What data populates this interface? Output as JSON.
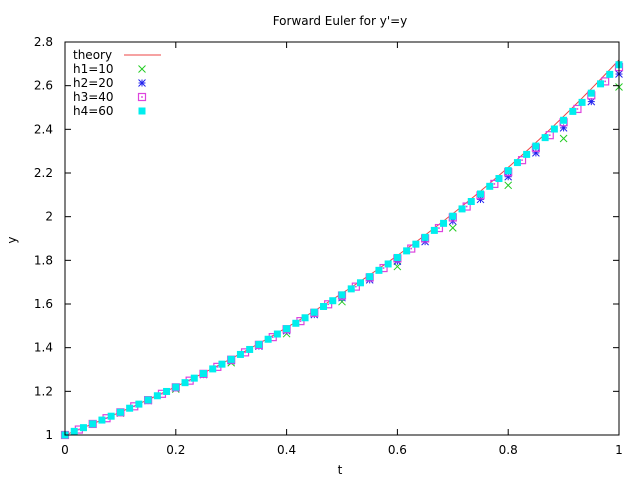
{
  "chart_data": {
    "type": "scatter",
    "title": "Forward Euler for y'=y",
    "xlabel": "t",
    "ylabel": "y",
    "xlim": [
      0,
      1
    ],
    "ylim": [
      1,
      2.8
    ],
    "x_ticks": [
      "0",
      "0.2",
      "0.4",
      "0.6",
      "0.8",
      "1"
    ],
    "y_ticks": [
      "1",
      "1.2",
      "1.4",
      "1.6",
      "1.8",
      "2",
      "2.2",
      "2.4",
      "2.6",
      "2.8"
    ],
    "grid": false,
    "legend_position": "top-left",
    "series": [
      {
        "name": "theory",
        "kind": "line",
        "color": "#ee4444",
        "function": "exp(t)"
      },
      {
        "name": "h1=10",
        "kind": "points",
        "marker": "x",
        "color": "#22cc22",
        "steps": 10
      },
      {
        "name": "h2=20",
        "kind": "points",
        "marker": "star",
        "color": "#2222ee",
        "steps": 20
      },
      {
        "name": "h3=40",
        "kind": "points",
        "marker": "open-square",
        "color": "#dd44dd",
        "steps": 40
      },
      {
        "name": "h4=60",
        "kind": "points",
        "marker": "filled-square",
        "color": "#00eeee",
        "steps": 60
      }
    ]
  }
}
